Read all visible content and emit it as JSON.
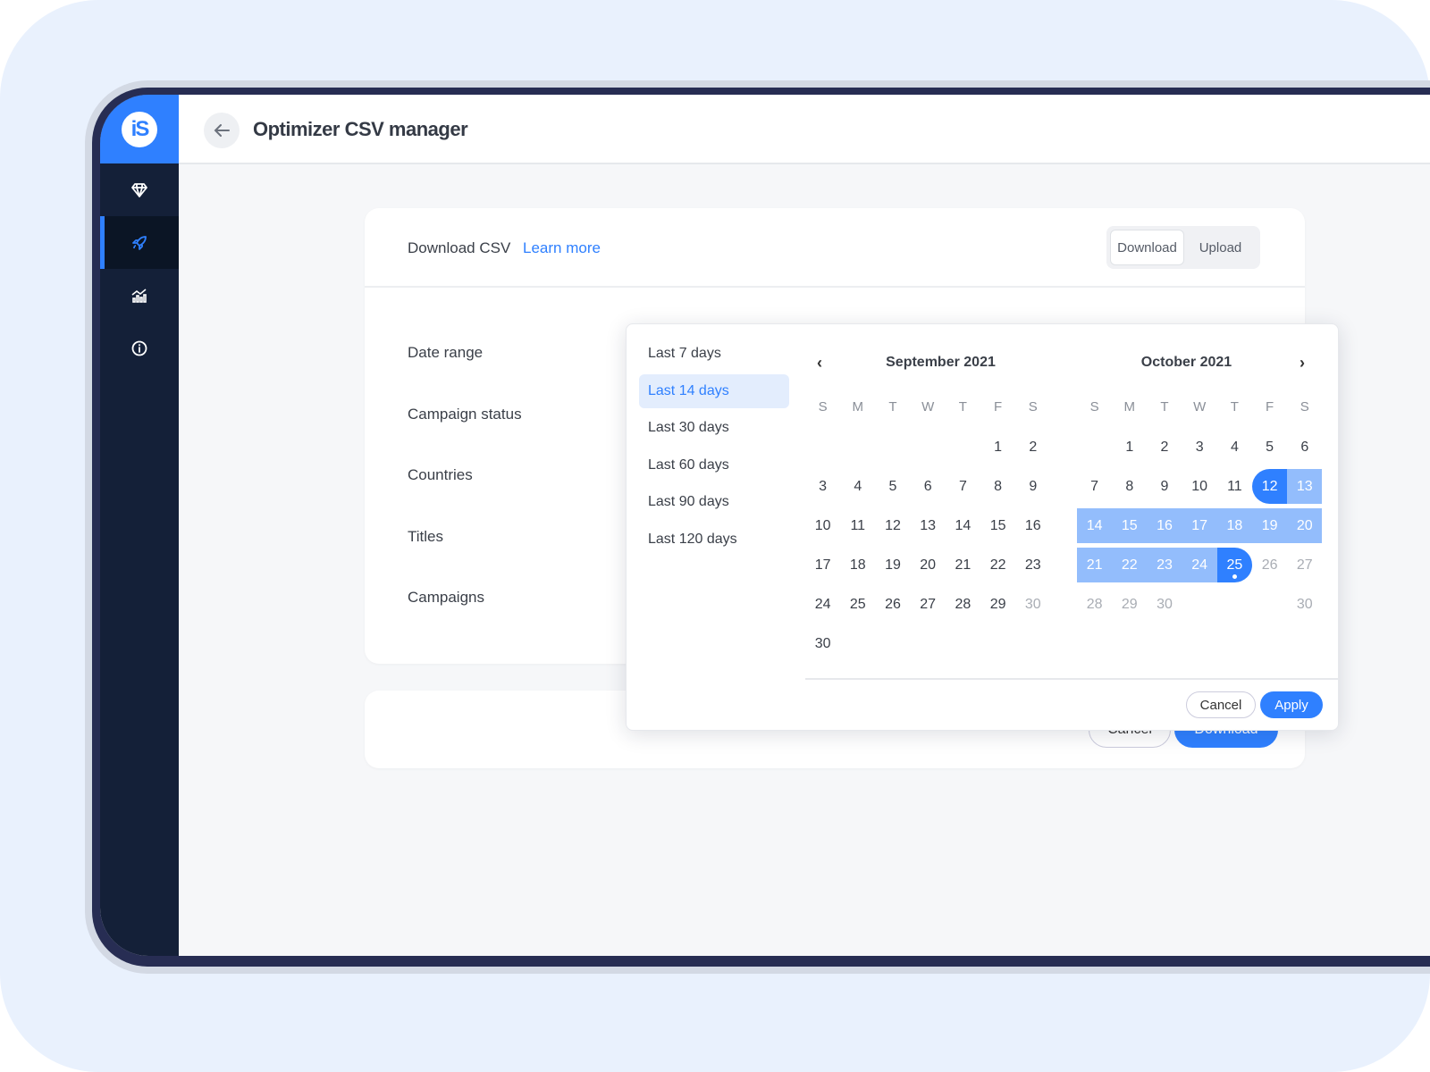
{
  "app": {
    "logo": "iS",
    "title": "Optimizer CSV manager"
  },
  "sidebar": {
    "items": [
      {
        "icon": "diamond-icon"
      },
      {
        "icon": "rocket-icon",
        "active": true
      },
      {
        "icon": "chart-icon"
      },
      {
        "icon": "info-icon"
      }
    ]
  },
  "card": {
    "title": "Download CSV",
    "learn_more": "Learn more",
    "tabs": [
      "Download",
      "Upload"
    ],
    "active_tab": "Download",
    "fields": [
      "Date range",
      "Campaign status",
      "Countries",
      "Titles",
      "Campaigns"
    ],
    "cancel": "Cancel",
    "download": "Download"
  },
  "picker": {
    "presets": [
      "Last 7 days",
      "Last 14 days",
      "Last 30 days",
      "Last 60 days",
      "Last 90 days",
      "Last 120 days"
    ],
    "active_preset": "Last 14 days",
    "weekdays": [
      "S",
      "M",
      "T",
      "W",
      "T",
      "F",
      "S"
    ],
    "months": [
      {
        "title": "September 2021",
        "weeks": [
          [
            null,
            null,
            null,
            null,
            null,
            1,
            2
          ],
          [
            3,
            4,
            5,
            6,
            7,
            8,
            9
          ],
          [
            10,
            11,
            12,
            13,
            14,
            15,
            16
          ],
          [
            17,
            18,
            19,
            20,
            21,
            22,
            23
          ],
          [
            24,
            25,
            26,
            27,
            28,
            29,
            30
          ],
          [
            30
          ]
        ],
        "muted": [
          [
            4,
            6
          ]
        ]
      },
      {
        "title": "October 2021",
        "weeks": [
          [
            null,
            1,
            2,
            3,
            4,
            5,
            6
          ],
          [
            7,
            8,
            9,
            10,
            11,
            12,
            13
          ],
          [
            14,
            15,
            16,
            17,
            18,
            19,
            20
          ],
          [
            21,
            22,
            23,
            24,
            25,
            26,
            27
          ],
          [
            28,
            29,
            30,
            null,
            null,
            null,
            30
          ]
        ],
        "muted": [
          [
            3,
            5
          ],
          [
            3,
            6
          ],
          [
            4,
            0
          ],
          [
            4,
            1
          ],
          [
            4,
            2
          ],
          [
            4,
            6
          ]
        ],
        "range_start": 12,
        "range_end": 25,
        "today": 25
      }
    ],
    "cancel": "Cancel",
    "apply": "Apply",
    "colors": {
      "accent": "#2f80ff",
      "range": "#93bdfc"
    }
  }
}
